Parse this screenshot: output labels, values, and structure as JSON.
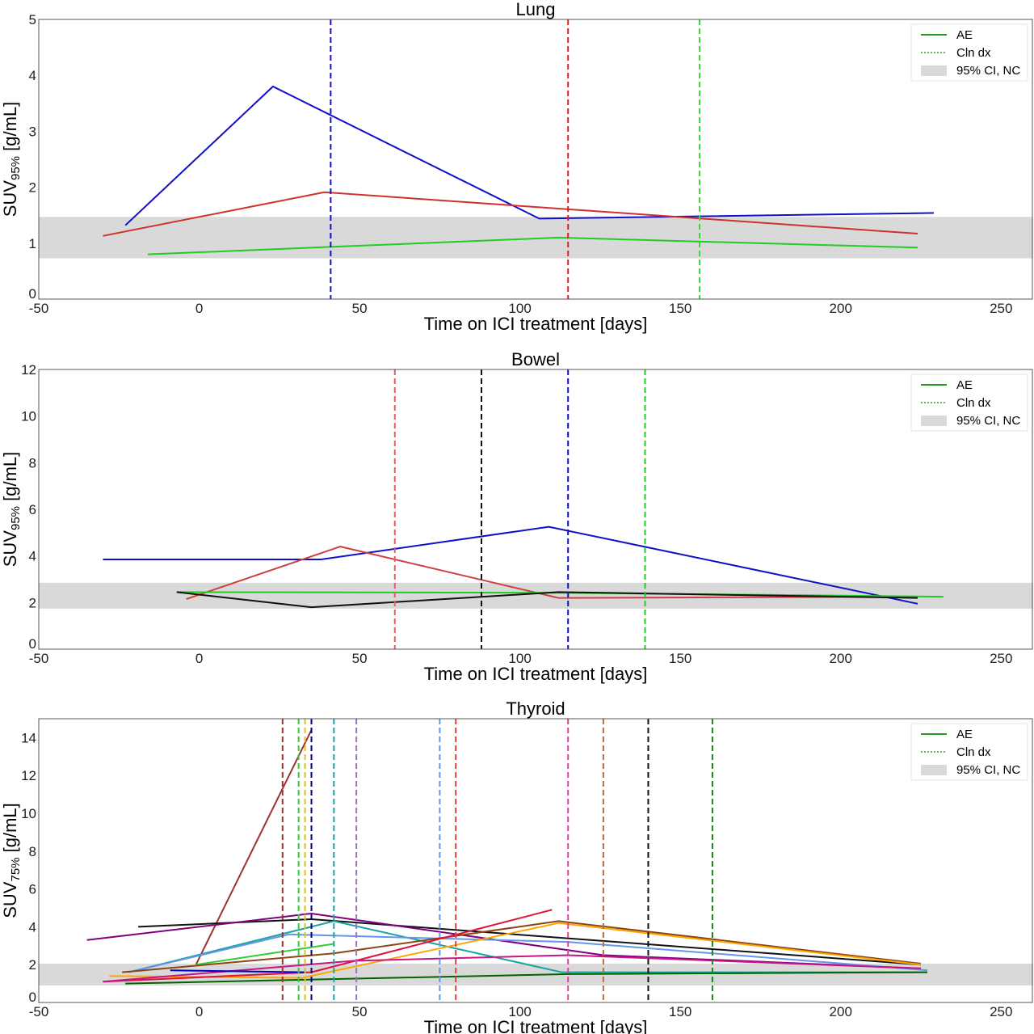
{
  "chart_data": [
    {
      "type": "line",
      "title": "Lung",
      "xlabel": "Time on ICI treatment [days]",
      "ylabel": {
        "base": "SUV",
        "sub": "95%",
        "unit": " [g/mL]"
      },
      "xlim": [
        -50,
        260
      ],
      "ylim": [
        0,
        5
      ],
      "xticks": [
        -50,
        0,
        50,
        100,
        150,
        200,
        250
      ],
      "yticks": [
        0,
        1,
        2,
        3,
        4,
        5
      ],
      "grid": false,
      "legend_position": "top-right",
      "ci_band": [
        0.73,
        1.47
      ],
      "series": [
        {
          "color": "#1010c8",
          "x": [
            -23,
            23,
            106,
            229
          ],
          "y": [
            1.32,
            3.8,
            1.44,
            1.54
          ]
        },
        {
          "color": "#d03030",
          "x": [
            -30,
            39,
            224
          ],
          "y": [
            1.13,
            1.91,
            1.17
          ]
        },
        {
          "color": "#22cc22",
          "x": [
            -16,
            112,
            224
          ],
          "y": [
            0.8,
            1.1,
            0.92
          ]
        }
      ],
      "clinical_dx": [
        {
          "color": "#1010c8",
          "x": 41
        },
        {
          "color": "#e02020",
          "x": 115
        },
        {
          "color": "#33dd33",
          "x": 156
        }
      ]
    },
    {
      "type": "line",
      "title": "Bowel",
      "xlabel": "Time on ICI treatment [days]",
      "ylabel": {
        "base": "SUV",
        "sub": "95%",
        "unit": " [g/mL]"
      },
      "xlim": [
        -50,
        260
      ],
      "ylim": [
        0,
        12
      ],
      "xticks": [
        -50,
        0,
        50,
        100,
        150,
        200,
        250
      ],
      "yticks": [
        0,
        2,
        4,
        6,
        8,
        10,
        12
      ],
      "grid": false,
      "legend_position": "top-right",
      "ci_band": [
        1.74,
        2.85
      ],
      "series": [
        {
          "color": "#1010c8",
          "x": [
            -30,
            38,
            109,
            224
          ],
          "y": [
            3.85,
            3.85,
            5.25,
            1.95
          ]
        },
        {
          "color": "#d04040",
          "x": [
            -4,
            44,
            112,
            224
          ],
          "y": [
            2.15,
            4.4,
            2.2,
            2.25
          ]
        },
        {
          "color": "#22cc22",
          "x": [
            -7,
            112,
            232
          ],
          "y": [
            2.45,
            2.42,
            2.25
          ]
        },
        {
          "color": "#111111",
          "x": [
            -7,
            35,
            112,
            224
          ],
          "y": [
            2.45,
            1.8,
            2.45,
            2.2
          ]
        }
      ],
      "clinical_dx": [
        {
          "color": "#e06060",
          "x": 61
        },
        {
          "color": "#111111",
          "x": 88
        },
        {
          "color": "#1010c8",
          "x": 115
        },
        {
          "color": "#22cc22",
          "x": 139
        }
      ]
    },
    {
      "type": "line",
      "title": "Thyroid",
      "xlabel": "Time on ICI treatment [days]",
      "ylabel": {
        "base": "SUV",
        "sub": "75%",
        "unit": " [g/mL]"
      },
      "xlim": [
        -50,
        260
      ],
      "ylim": [
        0,
        15
      ],
      "xticks": [
        -50,
        0,
        50,
        100,
        150,
        200,
        250
      ],
      "yticks": [
        0,
        2,
        4,
        6,
        8,
        10,
        12,
        14
      ],
      "grid": false,
      "legend_position": "top-right",
      "ci_band": [
        0.9,
        2.05
      ],
      "series": [
        {
          "color": "#a03030",
          "x": [
            -1,
            35
          ],
          "y": [
            2.0,
            14.4
          ]
        },
        {
          "color": "#111111",
          "x": [
            -19,
            35,
            225
          ],
          "y": [
            4.0,
            4.4,
            2.0
          ]
        },
        {
          "color": "#800080",
          "x": [
            -35,
            35,
            126,
            225
          ],
          "y": [
            3.3,
            4.7,
            2.5,
            1.8
          ]
        },
        {
          "color": "#1aa3a3",
          "x": [
            -22,
            42,
            113,
            227
          ],
          "y": [
            1.6,
            4.3,
            1.6,
            1.6
          ]
        },
        {
          "color": "#6495ed",
          "x": [
            -22,
            28,
            115,
            227
          ],
          "y": [
            1.6,
            3.6,
            3.2,
            1.7
          ]
        },
        {
          "color": "#32cd32",
          "x": [
            -1,
            42
          ],
          "y": [
            2.0,
            3.1
          ]
        },
        {
          "color": "#8b4513",
          "x": [
            -24,
            42,
            112,
            225
          ],
          "y": [
            1.6,
            2.6,
            4.3,
            2.05
          ]
        },
        {
          "color": "#ffa500",
          "x": [
            -28,
            32,
            112,
            225
          ],
          "y": [
            1.4,
            1.3,
            4.2,
            2.0
          ]
        },
        {
          "color": "#dc143c",
          "x": [
            -30,
            35,
            110
          ],
          "y": [
            1.1,
            1.6,
            4.9
          ]
        },
        {
          "color": "#c71585",
          "x": [
            -30,
            48,
            115,
            225
          ],
          "y": [
            1.1,
            2.2,
            2.5,
            1.8
          ]
        },
        {
          "color": "#0000cd",
          "x": [
            -9,
            33
          ],
          "y": [
            1.7,
            1.6
          ]
        },
        {
          "color": "#006400",
          "x": [
            -23,
            115,
            227
          ],
          "y": [
            1.0,
            1.5,
            1.6
          ]
        }
      ],
      "clinical_dx": [
        {
          "color": "#a03030",
          "x": 26
        },
        {
          "color": "#32cd32",
          "x": 31
        },
        {
          "color": "#e0c020",
          "x": 33
        },
        {
          "color": "#000080",
          "x": 35
        },
        {
          "color": "#1aa3a3",
          "x": 42
        },
        {
          "color": "#a070c0",
          "x": 49
        },
        {
          "color": "#6495ed",
          "x": 75
        },
        {
          "color": "#dc4040",
          "x": 80
        },
        {
          "color": "#e040a0",
          "x": 115
        },
        {
          "color": "#b07040",
          "x": 126
        },
        {
          "color": "#111111",
          "x": 140
        },
        {
          "color": "#118811",
          "x": 160
        }
      ]
    }
  ],
  "legend": {
    "ae_label": "AE",
    "clndx_label": "Cln dx",
    "ci_label": "95% CI, NC",
    "ae_color": "#2a9a2a",
    "ci_color": "#d9d9d9"
  }
}
